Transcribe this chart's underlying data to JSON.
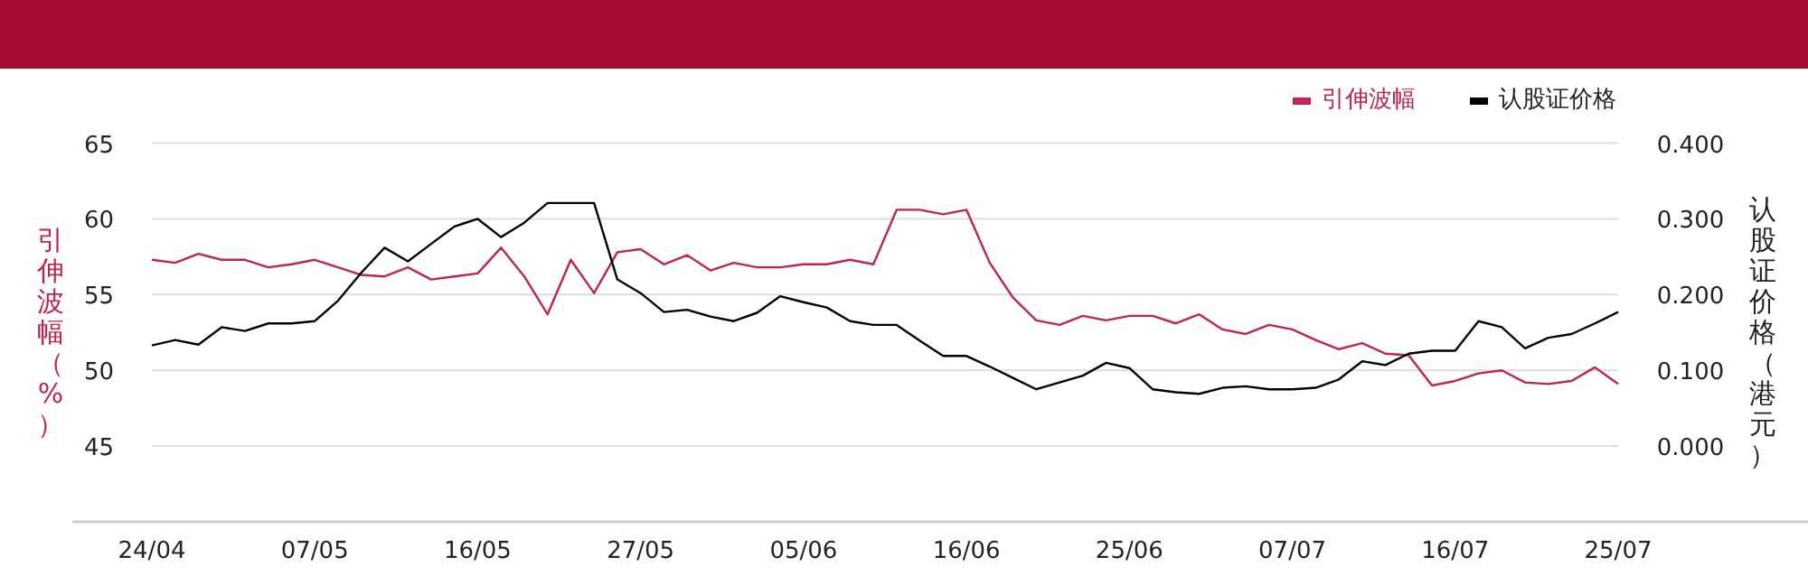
{
  "chart_data": {
    "type": "line",
    "ylabel": "引伸波幅（%）",
    "y2label": "认股证价格（港元）",
    "legend": "top right",
    "grid": "y",
    "categories": [
      "24/04",
      null,
      null,
      null,
      null,
      null,
      null,
      "07/05",
      null,
      null,
      null,
      null,
      null,
      null,
      "16/05",
      null,
      null,
      null,
      null,
      null,
      null,
      "27/05",
      null,
      null,
      null,
      null,
      null,
      null,
      "05/06",
      null,
      null,
      null,
      null,
      null,
      null,
      "16/06",
      null,
      null,
      null,
      null,
      null,
      null,
      "25/06",
      null,
      null,
      null,
      null,
      null,
      null,
      "07/07",
      null,
      null,
      null,
      null,
      null,
      null,
      "16/07",
      null,
      null,
      null,
      null,
      null,
      null,
      "25/07"
    ],
    "ylim": [
      40,
      65
    ],
    "yticks": [
      45,
      50,
      55,
      60,
      65
    ],
    "y2lim": [
      -0.1,
      0.4
    ],
    "y2ticks": [
      {
        "value": 0,
        "label": "0.000"
      },
      {
        "value": 0.1,
        "label": "0.100"
      },
      {
        "value": 0.2,
        "label": "0.200"
      },
      {
        "value": 0.3,
        "label": "0.300"
      },
      {
        "value": 0.4,
        "label": "0.400"
      }
    ],
    "series": [
      {
        "name": "引伸波幅",
        "color": "#c0254c",
        "values": [
          57.3,
          57.1,
          57.7,
          57.3,
          57.3,
          56.8,
          57.0,
          57.3,
          56.8,
          56.3,
          56.2,
          56.8,
          56.0,
          56.2,
          56.4,
          58.1,
          56.2,
          53.7,
          57.3,
          55.1,
          57.8,
          58.0,
          57.0,
          57.6,
          56.6,
          57.1,
          56.8,
          56.8,
          57.0,
          57.0,
          57.3,
          57.0,
          60.6,
          60.6,
          60.3,
          60.6,
          57.1,
          54.8,
          53.3,
          53.0,
          53.6,
          53.3,
          53.6,
          53.6,
          53.1,
          53.7,
          52.7,
          52.4,
          53.0,
          52.7,
          52.0,
          51.4,
          51.8,
          51.1,
          51.0,
          49.0,
          49.3,
          49.8,
          50.0,
          49.2,
          49.1,
          49.3,
          50.2,
          49.1
        ]
      },
      {
        "name": "认股证价格",
        "color": "#000000",
        "axis": "y2",
        "values": [
          0.133,
          0.14,
          0.134,
          0.157,
          0.152,
          0.162,
          0.162,
          0.165,
          0.192,
          0.229,
          0.262,
          0.244,
          0.267,
          0.29,
          0.3,
          0.276,
          0.295,
          0.321,
          0.321,
          0.321,
          0.22,
          0.202,
          0.177,
          0.18,
          0.171,
          0.165,
          0.176,
          0.198,
          0.19,
          0.183,
          0.165,
          0.16,
          0.16,
          0.139,
          0.119,
          0.119,
          0.105,
          0.09,
          0.075,
          0.084,
          0.093,
          0.11,
          0.103,
          0.075,
          0.071,
          0.069,
          0.077,
          0.079,
          0.075,
          0.075,
          0.077,
          0.088,
          0.112,
          0.107,
          0.122,
          0.126,
          0.126,
          0.165,
          0.157,
          0.129,
          0.143,
          0.148,
          0.162,
          0.177
        ]
      }
    ]
  }
}
